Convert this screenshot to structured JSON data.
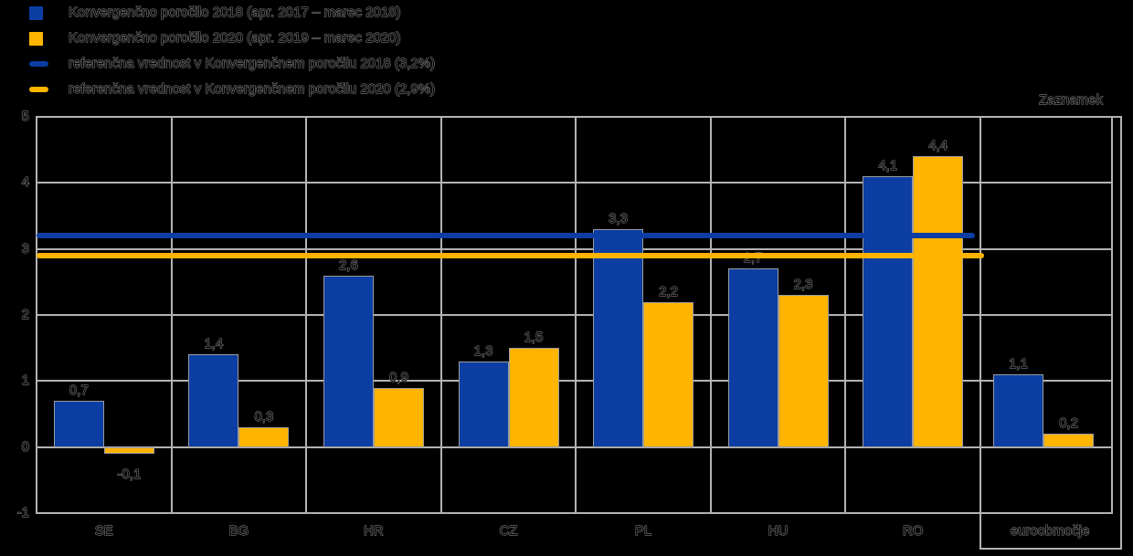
{
  "colors": {
    "series_2018": "#0B3DA3",
    "series_2020": "#FFB400",
    "grid": "#B3B3B3",
    "bar_border": "#9C9C9C",
    "background": "#000000",
    "text_fill": "#000000",
    "text_outline": "#8F8F8F"
  },
  "legend": {
    "items": [
      {
        "type": "bar-swatch",
        "color_key": "series_2018",
        "label": "Konvergenčno poročilo 2018 (apr. 2017 – marec 2018)"
      },
      {
        "type": "bar-swatch",
        "color_key": "series_2020",
        "label": "Konvergenčno poročilo 2020 (apr. 2019 – marec 2020)"
      },
      {
        "type": "line-swatch",
        "color_key": "series_2018",
        "label": "referenčna vrednost v Konvergenčnem poročilu 2018 (3,2%)"
      },
      {
        "type": "line-swatch",
        "color_key": "series_2020",
        "label": "referenčna vrednost v Konvergenčnem poročilu 2020 (2,9%)"
      }
    ]
  },
  "note_box": {
    "label": "Zaznamek",
    "category": "euroobmočje"
  },
  "chart_data": {
    "type": "bar",
    "categories": [
      "SE",
      "BG",
      "HR",
      "CZ",
      "PL",
      "HU",
      "RO",
      "euroobmočje"
    ],
    "series": [
      {
        "name": "Konvergenčno poročilo 2018 (apr. 2017 – marec 2018)",
        "color_key": "series_2018",
        "values": [
          0.7,
          1.4,
          2.6,
          1.3,
          3.3,
          2.7,
          4.1,
          1.1
        ],
        "value_labels": [
          "0,7",
          "1,4",
          "2,6",
          "1,3",
          "3,3",
          "2,7",
          "4,1",
          "1,1"
        ]
      },
      {
        "name": "Konvergenčno poročilo 2020 (apr. 2019 – marec 2020)",
        "color_key": "series_2020",
        "values": [
          -0.1,
          0.3,
          0.9,
          1.5,
          2.2,
          2.3,
          4.4,
          0.2
        ],
        "value_labels": [
          "-0,1",
          "0,3",
          "0,9",
          "1,5",
          "2,2",
          "2,3",
          "4,4",
          "0,2"
        ]
      }
    ],
    "reference_lines": [
      {
        "name": "referenčna vrednost v Konvergenčnem poročilu 2018 (3,2%)",
        "value": 3.2,
        "color_key": "series_2018"
      },
      {
        "name": "referenčna vrednost v Konvergenčnem poročilu 2020 (2,9%)",
        "value": 2.9,
        "color_key": "series_2020"
      }
    ],
    "ylim": [
      -1,
      5
    ],
    "yticks": [
      "5",
      "4",
      "3",
      "2",
      "1",
      "0",
      "-1"
    ],
    "grid": true,
    "legend_position": "top-left",
    "annotation": "Zaznamek",
    "highlighted_category": "euroobmočje",
    "title": "",
    "xlabel": "",
    "ylabel": ""
  }
}
